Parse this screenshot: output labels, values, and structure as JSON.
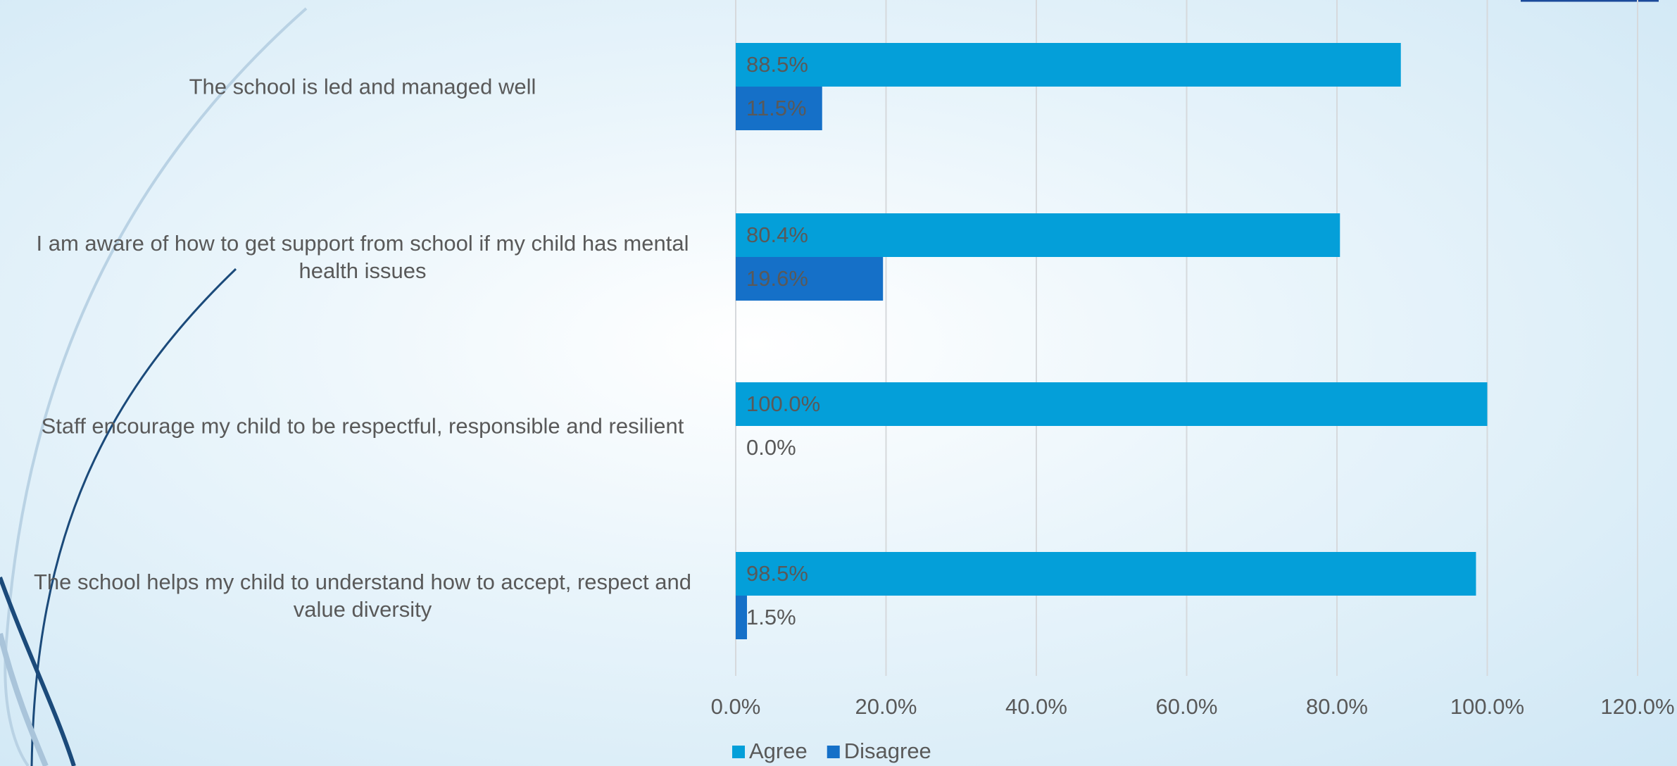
{
  "chart_data": {
    "type": "bar",
    "orientation": "horizontal",
    "categories": [
      "The school is led and managed well",
      "I am aware of how to get support from school if my child has mental health issues",
      "Staff encourage my child to be respectful, responsible and resilient",
      "The school helps my child to understand how to accept, respect and value diversity"
    ],
    "series": [
      {
        "name": "Agree",
        "color": "#049fd9",
        "values": [
          88.5,
          80.4,
          100.0,
          98.5
        ],
        "value_labels": [
          "88.5%",
          "80.4%",
          "100.0%",
          "98.5%"
        ]
      },
      {
        "name": "Disagree",
        "color": "#1570c8",
        "values": [
          11.5,
          19.6,
          0.0,
          1.5
        ],
        "value_labels": [
          "11.5%",
          "19.6%",
          "0.0%",
          "1.5%"
        ]
      }
    ],
    "xlim": [
      0,
      120
    ],
    "xticks": [
      {
        "value": 0,
        "label": "0.0%"
      },
      {
        "value": 20,
        "label": "20.0%"
      },
      {
        "value": 40,
        "label": "40.0%"
      },
      {
        "value": 60,
        "label": "60.0%"
      },
      {
        "value": 80,
        "label": "80.0%"
      },
      {
        "value": 100,
        "label": "100.0%"
      },
      {
        "value": 120,
        "label": "120.0%"
      }
    ],
    "grid": true,
    "legend": "bottom"
  }
}
